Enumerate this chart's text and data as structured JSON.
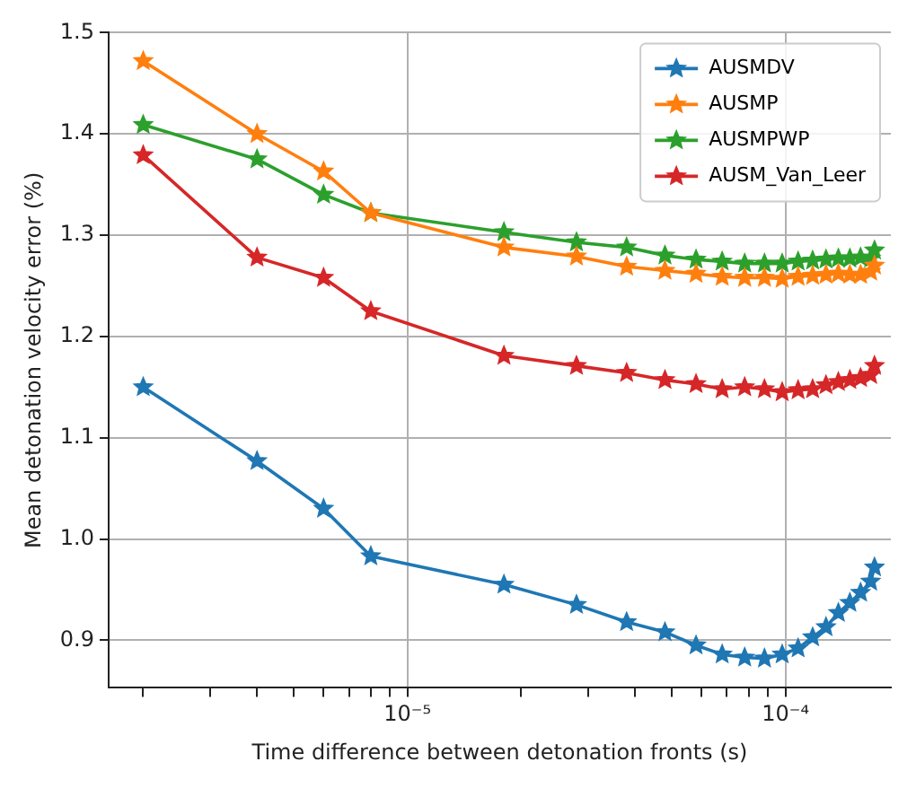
{
  "chart_data": {
    "type": "line",
    "xlabel": "Time difference between detonation fronts (s)",
    "ylabel": "Mean detonation velocity error (%)",
    "log": "x",
    "x": [
      2e-06,
      4e-06,
      6e-06,
      8e-06,
      1.8e-05,
      2.8e-05,
      3.8e-05,
      4.8e-05,
      5.8e-05,
      6.8e-05,
      7.8e-05,
      8.8e-05,
      9.8e-05,
      0.000108,
      0.000118,
      0.000128,
      0.000138,
      0.000148,
      0.000158,
      0.000168,
      0.000172
    ],
    "series": [
      {
        "name": "AUSMDV",
        "color": "#1f77b4",
        "values": [
          1.15,
          1.077,
          1.03,
          0.983,
          0.955,
          0.935,
          0.918,
          0.908,
          0.895,
          0.886,
          0.883,
          0.882,
          0.886,
          0.892,
          0.903,
          0.913,
          0.927,
          0.937,
          0.947,
          0.958,
          0.972
        ]
      },
      {
        "name": "AUSMP",
        "color": "#ff7f0e",
        "values": [
          1.472,
          1.4,
          1.363,
          1.322,
          1.288,
          1.279,
          1.269,
          1.265,
          1.262,
          1.259,
          1.258,
          1.258,
          1.257,
          1.259,
          1.26,
          1.261,
          1.262,
          1.261,
          1.261,
          1.264,
          1.27
        ]
      },
      {
        "name": "AUSMPWP",
        "color": "#2ca02c",
        "values": [
          1.409,
          1.375,
          1.34,
          1.322,
          1.303,
          1.293,
          1.288,
          1.28,
          1.276,
          1.274,
          1.272,
          1.272,
          1.272,
          1.274,
          1.275,
          1.276,
          1.277,
          1.277,
          1.278,
          1.277,
          1.285
        ]
      },
      {
        "name": "AUSM_Van_Leer",
        "color": "#d62728",
        "values": [
          1.379,
          1.278,
          1.258,
          1.225,
          1.181,
          1.171,
          1.164,
          1.157,
          1.153,
          1.148,
          1.15,
          1.148,
          1.145,
          1.147,
          1.148,
          1.152,
          1.155,
          1.157,
          1.159,
          1.162,
          1.171
        ]
      }
    ],
    "xlim": [
      1.62e-06,
      0.00019
    ],
    "xticks": [
      {
        "value": 2e-06,
        "label": null
      },
      {
        "value": 3e-06,
        "label": null
      },
      {
        "value": 4e-06,
        "label": null
      },
      {
        "value": 5e-06,
        "label": null
      },
      {
        "value": 6e-06,
        "label": null
      },
      {
        "value": 7e-06,
        "label": null
      },
      {
        "value": 8e-06,
        "label": null
      },
      {
        "value": 9e-06,
        "label": null
      },
      {
        "value": 1e-05,
        "label": "10⁻⁵"
      },
      {
        "value": 2e-05,
        "label": null
      },
      {
        "value": 3e-05,
        "label": null
      },
      {
        "value": 4e-05,
        "label": null
      },
      {
        "value": 5e-05,
        "label": null
      },
      {
        "value": 6e-05,
        "label": null
      },
      {
        "value": 7e-05,
        "label": null
      },
      {
        "value": 8e-05,
        "label": null
      },
      {
        "value": 9e-05,
        "label": null
      },
      {
        "value": 0.0001,
        "label": "10⁻⁴"
      }
    ],
    "ylim": [
      0.853,
      1.5
    ],
    "yticks": [
      0.9,
      {
        "value": 1.0,
        "label": "1.0"
      },
      1.1,
      1.2,
      1.3,
      1.4,
      1.5
    ],
    "grid": true,
    "legend": "top right",
    "marker": "star",
    "line_style": "solid"
  }
}
